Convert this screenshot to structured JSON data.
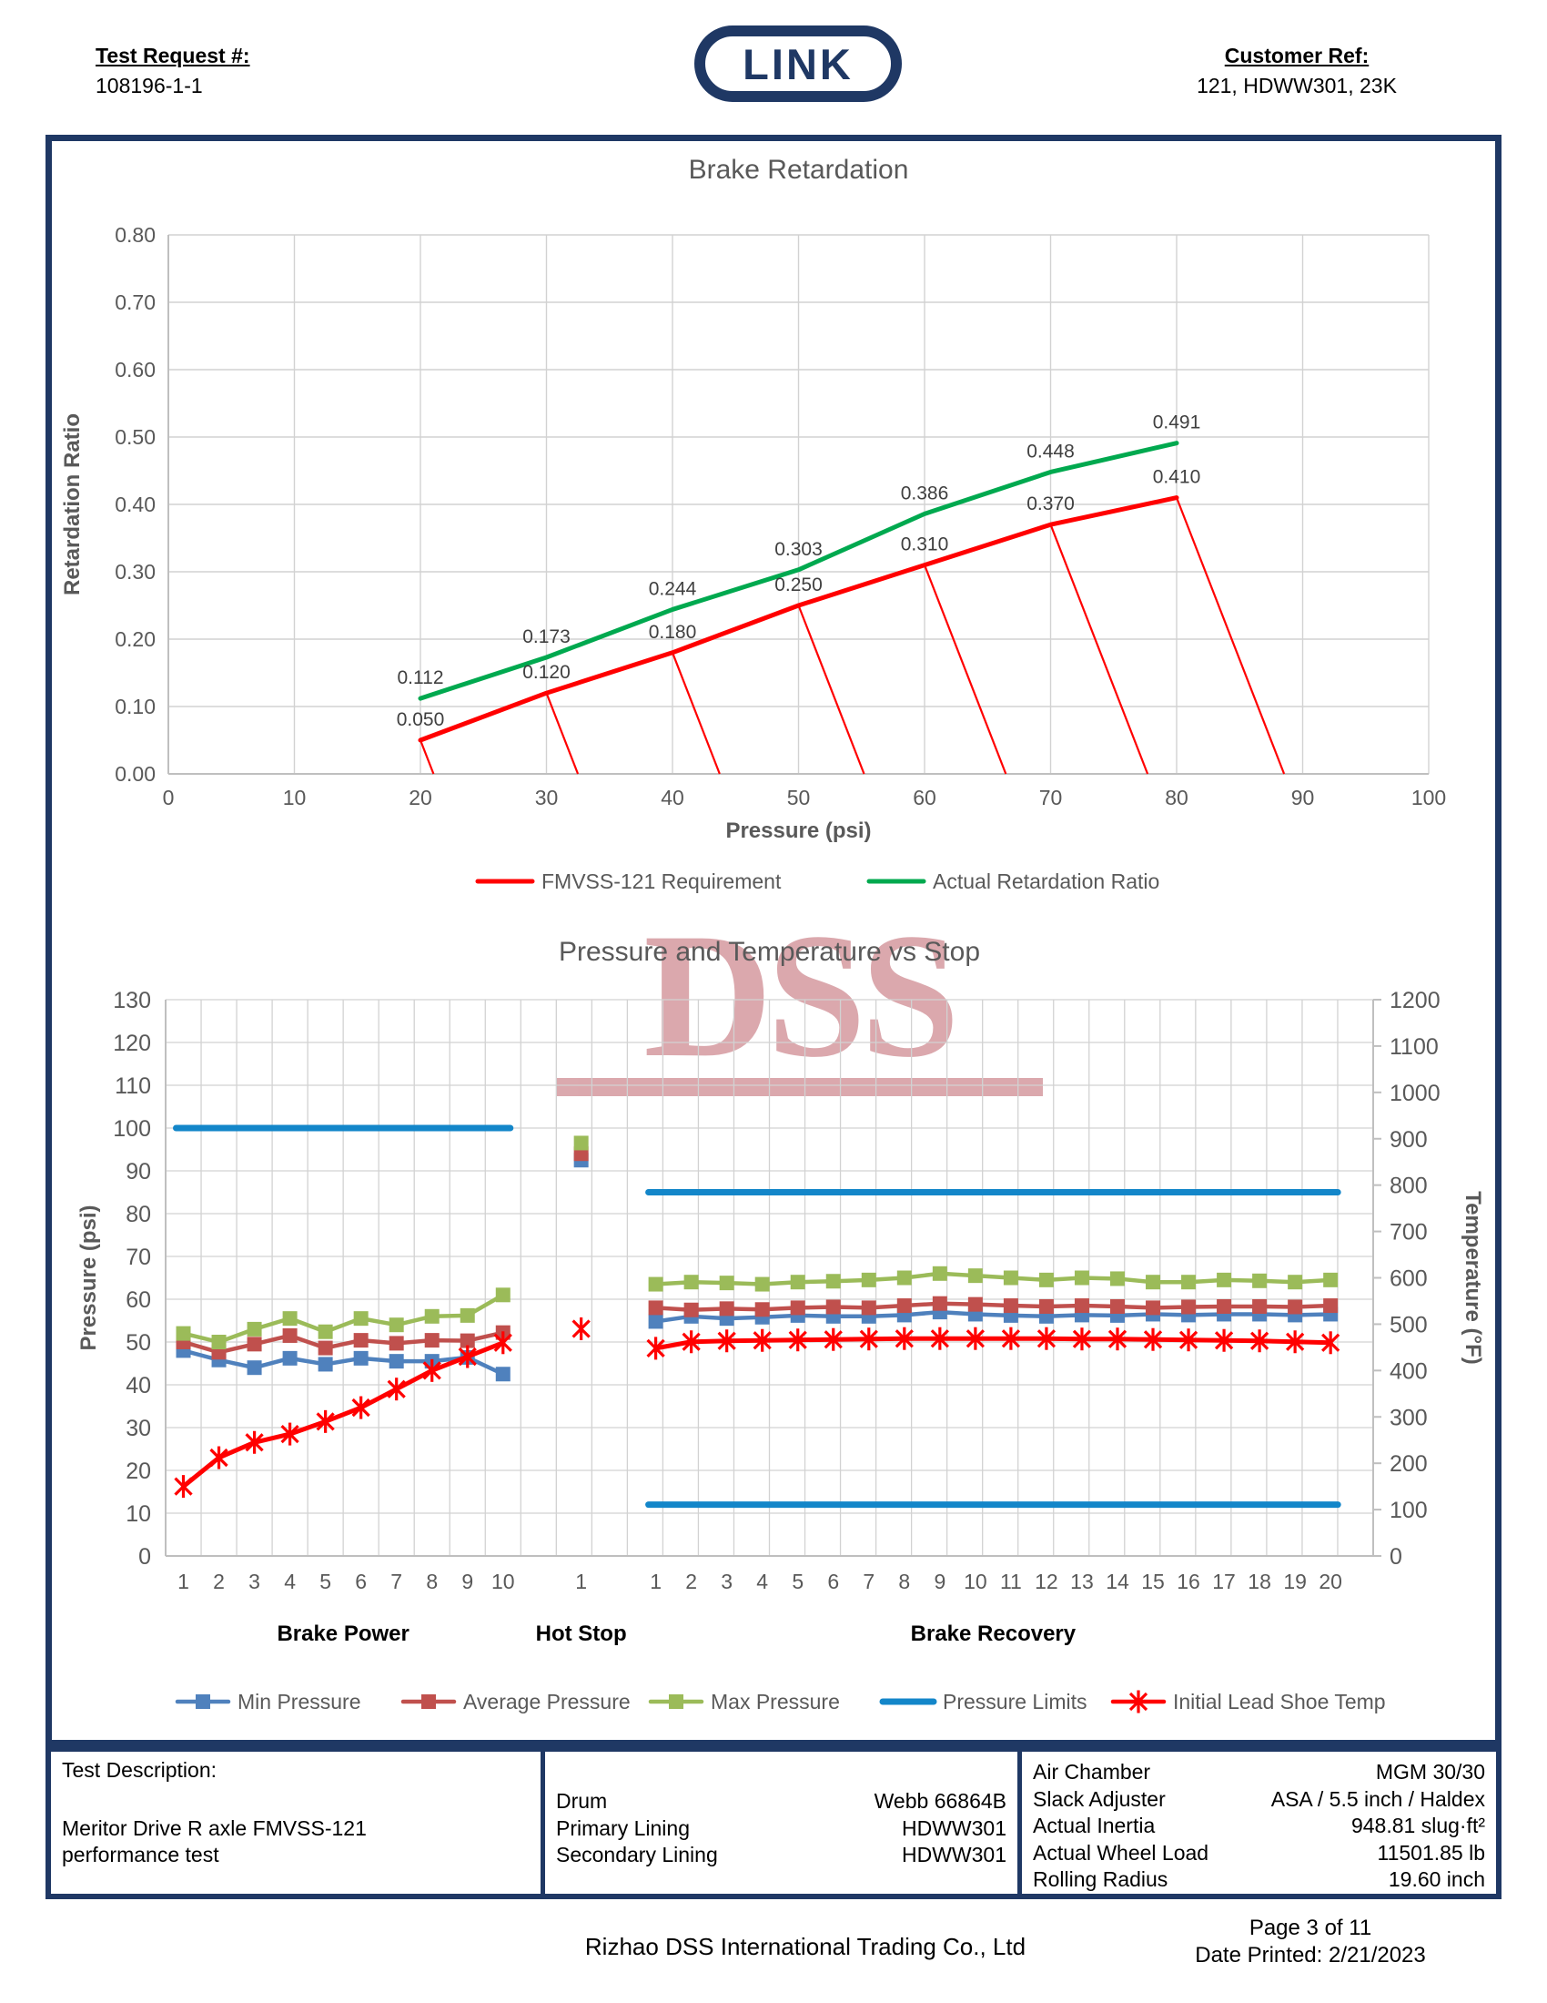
{
  "header": {
    "test_request_label": "Test Request #:",
    "test_request_value": "108196-1-1",
    "logo_text": "LINK",
    "customer_ref_label": "Customer Ref:",
    "customer_ref_value": "121, HDWW301, 23K"
  },
  "colors": {
    "brand_navy": "#1F3864",
    "requirement_red": "#FF0000",
    "actual_green": "#00A94F",
    "min_pressure_blue": "#4F81BD",
    "avg_pressure_red": "#C0504D",
    "max_pressure_green": "#9BBB59",
    "pressure_limits_blue": "#1386C9",
    "temp_red": "#FF0000",
    "gridline_gray": "#D2D2D2",
    "tick_gray": "#595959",
    "watermark_pink": "#B8545E"
  },
  "watermark": {
    "text": "DSS"
  },
  "chart_data": [
    {
      "type": "line",
      "title": "Brake Retardation",
      "xlabel": "Pressure (psi)",
      "ylabel": "Retardation Ratio",
      "xlim": [
        0,
        100
      ],
      "xstep": 10,
      "ylim": [
        0,
        0.8
      ],
      "ystep": 0.1,
      "grid": true,
      "legend_position": "bottom",
      "hatch_slope_psi_per_ratio": 20.8,
      "series": [
        {
          "name": "FMVSS-121 Requirement",
          "color": "#FF0000",
          "hatch_to_axis": true,
          "x": [
            20,
            30,
            40,
            50,
            60,
            70,
            80
          ],
          "values": [
            0.05,
            0.12,
            0.18,
            0.25,
            0.31,
            0.37,
            0.41
          ],
          "labels": [
            "0.050",
            "0.120",
            "0.180",
            "0.250",
            "0.310",
            "0.370",
            "0.410"
          ]
        },
        {
          "name": "Actual Retardation Ratio",
          "color": "#00A94F",
          "hatch_to_axis": false,
          "x": [
            20,
            30,
            40,
            50,
            60,
            70,
            80
          ],
          "values": [
            0.112,
            0.173,
            0.244,
            0.303,
            0.386,
            0.448,
            0.491
          ],
          "labels": [
            "0.112",
            "0.173",
            "0.244",
            "0.303",
            "0.386",
            "0.448",
            "0.491"
          ]
        }
      ]
    },
    {
      "type": "line",
      "title": "Pressure and Temperature vs Stop",
      "ylabel_left": "Pressure (psi)",
      "ylabel_right": "Temperature (°F)",
      "ylim_left": [
        0,
        130
      ],
      "ystep_left": 10,
      "ylim_right": [
        0,
        1200
      ],
      "ystep_right": 100,
      "grid": true,
      "sections": [
        "Brake Power",
        "Hot Stop",
        "Brake Recovery"
      ],
      "categories": {
        "brake_power": [
          1,
          2,
          3,
          4,
          5,
          6,
          7,
          8,
          9,
          10
        ],
        "hot_stop": [
          1
        ],
        "brake_recovery": [
          1,
          2,
          3,
          4,
          5,
          6,
          7,
          8,
          9,
          10,
          11,
          12,
          13,
          14,
          15,
          16,
          17,
          18,
          19,
          20
        ]
      },
      "series": [
        {
          "name": "Min Pressure",
          "color": "#4F81BD",
          "axis": "left",
          "marker": "square",
          "brake_power": [
            48,
            45.8,
            44,
            46.2,
            44.8,
            46.2,
            45.5,
            45.5,
            46.4,
            42.5
          ],
          "hot_stop": [
            92.5
          ],
          "brake_recovery": [
            54.8,
            56,
            55.5,
            55.8,
            56.2,
            56,
            56,
            56.3,
            57,
            56.5,
            56.2,
            56,
            56.3,
            56.2,
            56.5,
            56.3,
            56.5,
            56.5,
            56.3,
            56.5
          ]
        },
        {
          "name": "Average Pressure",
          "color": "#C0504D",
          "axis": "left",
          "marker": "square",
          "brake_power": [
            50,
            47.6,
            49.5,
            51.5,
            48.6,
            50.4,
            49.7,
            50.4,
            50.3,
            52.2
          ],
          "hot_stop": [
            94
          ],
          "brake_recovery": [
            58,
            57.5,
            57.8,
            57.6,
            58,
            58.2,
            58,
            58.5,
            59,
            58.8,
            58.5,
            58.3,
            58.5,
            58.3,
            58,
            58.2,
            58.3,
            58.3,
            58.2,
            58.5
          ]
        },
        {
          "name": "Max Pressure",
          "color": "#9BBB59",
          "axis": "left",
          "marker": "square",
          "brake_power": [
            52,
            50,
            53,
            55.5,
            52.4,
            55.5,
            54,
            56,
            56.2,
            61
          ],
          "hot_stop": [
            96.5
          ],
          "brake_recovery": [
            63.5,
            64,
            63.8,
            63.5,
            64,
            64.2,
            64.5,
            65,
            66,
            65.5,
            65,
            64.5,
            65,
            64.8,
            64,
            64,
            64.5,
            64.3,
            64,
            64.5
          ]
        },
        {
          "name": "Pressure Limits",
          "color": "#1386C9",
          "type": "limits",
          "segments": [
            {
              "section": "brake_power",
              "value": 100
            },
            {
              "section": "brake_recovery",
              "value": 85
            },
            {
              "section": "brake_recovery",
              "value": 12
            }
          ]
        },
        {
          "name": "Initial Lead Shoe Temp",
          "color": "#FF0000",
          "axis": "right",
          "marker": "star",
          "brake_power": [
            150,
            212,
            245,
            263,
            290,
            320,
            360,
            400,
            430,
            460
          ],
          "hot_stop": [
            490
          ],
          "brake_recovery": [
            448,
            462,
            464,
            465,
            466,
            467,
            468,
            469,
            469,
            469,
            469,
            469,
            468,
            468,
            467,
            466,
            465,
            464,
            462,
            460
          ]
        }
      ]
    }
  ],
  "info_table": {
    "description_label": "Test Description:",
    "description_lines": [
      "Meritor Drive R axle FMVSS-121",
      "performance test"
    ],
    "col_mid": {
      "rows": [
        {
          "label": "Drum",
          "value": "Webb 66864B"
        },
        {
          "label": "Primary Lining",
          "value": "HDWW301"
        },
        {
          "label": "Secondary Lining",
          "value": "HDWW301"
        }
      ]
    },
    "col_right": {
      "rows": [
        {
          "label": "Air Chamber",
          "value": "MGM 30/30"
        },
        {
          "label": "Slack Adjuster",
          "value": "ASA / 5.5 inch / Haldex"
        },
        {
          "label": "Actual Inertia",
          "value": "948.81 slug·ft²"
        },
        {
          "label": "Actual Wheel Load",
          "value": "11501.85 lb"
        },
        {
          "label": "Rolling Radius",
          "value": "19.60 inch"
        }
      ]
    }
  },
  "footer": {
    "company": "Rizhao DSS International Trading Co., Ltd",
    "page": "Page 3 of 11",
    "date_printed": "Date Printed: 2/21/2023"
  }
}
